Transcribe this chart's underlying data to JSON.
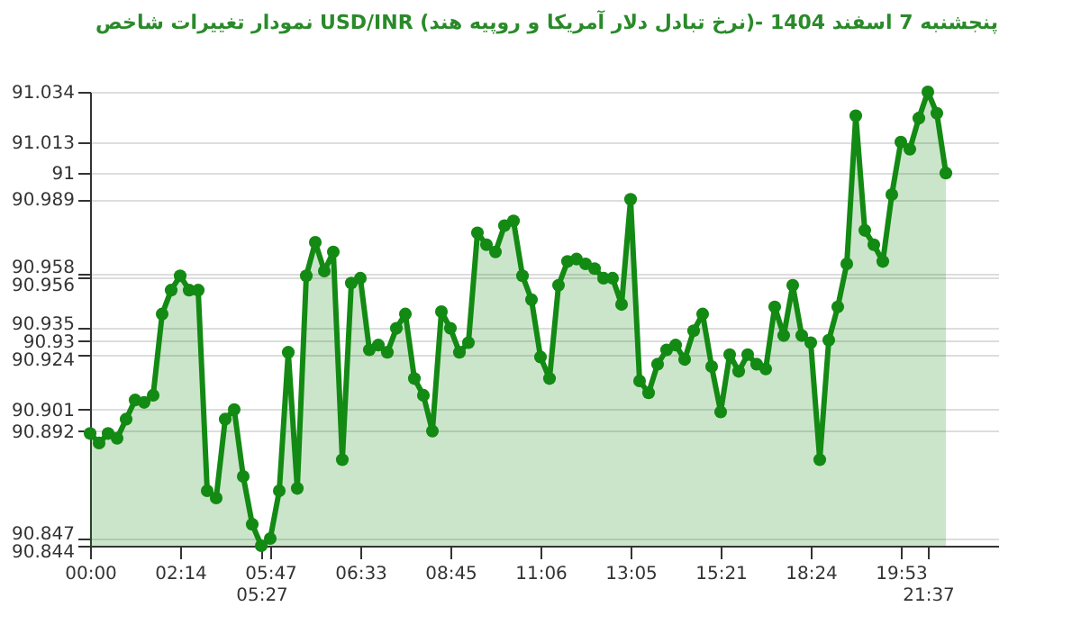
{
  "chart_data": {
    "type": "area",
    "title": "نمودار تغییرات شاخص USD/INR (نرخ تبادل دلار آمریکا و روپیه هند)- پنجشنبه 7 اسفند 1404",
    "categories": [
      "00:00",
      null,
      null,
      null,
      null,
      null,
      null,
      null,
      null,
      null,
      "02:14",
      null,
      null,
      null,
      null,
      null,
      null,
      null,
      null,
      "05:27",
      "05:47",
      null,
      null,
      null,
      null,
      null,
      null,
      null,
      null,
      null,
      "06:33",
      null,
      null,
      null,
      null,
      null,
      null,
      null,
      null,
      null,
      "08:45",
      null,
      null,
      null,
      null,
      null,
      null,
      null,
      null,
      null,
      "11:06",
      null,
      null,
      null,
      null,
      null,
      null,
      null,
      null,
      null,
      "13:05",
      null,
      null,
      null,
      null,
      null,
      null,
      null,
      null,
      null,
      "15:21",
      null,
      null,
      null,
      null,
      null,
      null,
      null,
      null,
      null,
      "18:24",
      null,
      null,
      null,
      null,
      null,
      null,
      null,
      null,
      null,
      "19:53",
      null,
      null,
      "21:37",
      null,
      null
    ],
    "series": [
      {
        "color": "#138a13",
        "values": [
          90.891,
          90.887,
          90.891,
          90.889,
          90.897,
          90.905,
          90.904,
          90.907,
          90.941,
          90.951,
          90.957,
          90.951,
          90.951,
          90.867,
          90.864,
          90.897,
          90.901,
          90.873,
          90.853,
          90.844,
          90.847,
          90.867,
          90.925,
          90.868,
          90.957,
          90.971,
          90.959,
          90.967,
          90.88,
          90.954,
          90.956,
          90.926,
          90.928,
          90.925,
          90.935,
          90.941,
          90.914,
          90.907,
          90.892,
          90.942,
          90.935,
          90.925,
          90.929,
          90.975,
          90.97,
          90.967,
          90.978,
          90.98,
          90.957,
          90.947,
          90.923,
          90.914,
          90.953,
          90.963,
          90.964,
          90.962,
          90.96,
          90.956,
          90.956,
          90.945,
          90.989,
          90.913,
          90.908,
          90.92,
          90.926,
          90.928,
          90.922,
          90.934,
          90.941,
          90.919,
          90.9,
          90.924,
          90.917,
          90.924,
          90.92,
          90.918,
          90.944,
          90.932,
          90.953,
          90.932,
          90.929,
          90.88,
          90.93,
          90.944,
          90.962,
          91.024,
          90.976,
          90.97,
          90.963,
          90.991,
          91.013,
          91.01,
          91.023,
          91.034,
          91.025,
          91.0
        ]
      }
    ],
    "ylim": [
      90.844,
      91.034
    ],
    "yticks": [
      91.034,
      91.013,
      91,
      90.989,
      90.958,
      90.956,
      90.935,
      90.93,
      90.924,
      90.901,
      90.892,
      90.847,
      90.844
    ],
    "grid": "y",
    "marker": "circle"
  }
}
